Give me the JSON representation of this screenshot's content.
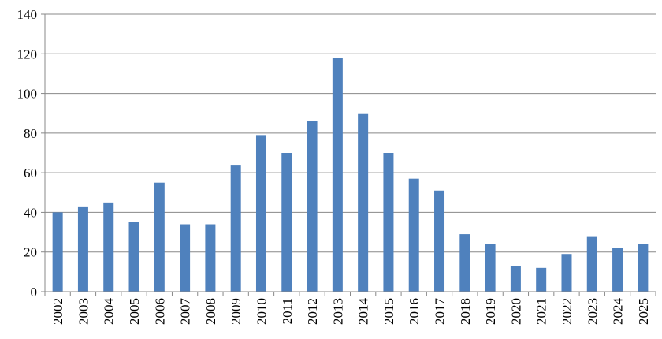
{
  "chart_data": {
    "type": "bar",
    "categories": [
      "2002",
      "2003",
      "2004",
      "2005",
      "2006",
      "2007",
      "2008",
      "2009",
      "2010",
      "2011",
      "2012",
      "2013",
      "2014",
      "2015",
      "2016",
      "2017",
      "2018",
      "2019",
      "2020",
      "2021",
      "2022",
      "2023",
      "2024",
      "2025"
    ],
    "values": [
      40,
      43,
      45,
      35,
      55,
      34,
      34,
      64,
      79,
      70,
      86,
      118,
      90,
      70,
      57,
      51,
      29,
      24,
      13,
      12,
      19,
      28,
      22,
      24
    ],
    "color": "#4f81bd",
    "ylim": [
      0,
      140
    ],
    "yticks": [
      0,
      20,
      40,
      60,
      80,
      100,
      120,
      140
    ],
    "grid": true
  }
}
